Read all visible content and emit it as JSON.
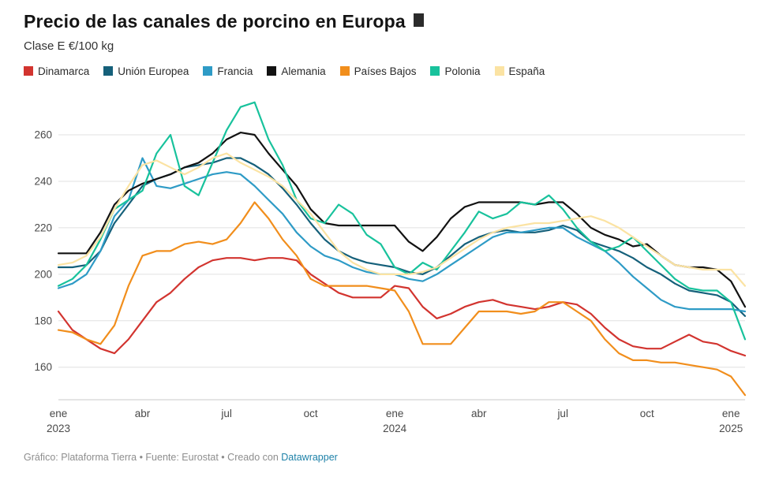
{
  "header": {
    "title": "Precio de las canales de porcino en Europa",
    "title_badge": "",
    "subtitle": "Clase E €/100 kg"
  },
  "footer": {
    "text_before": "Gráfico: Plataforma Tierra • Fuente: Eurostat • Creado con ",
    "link_label": "Datawrapper"
  },
  "colors": {
    "grid": "#e0e0e0",
    "axis": "#c8c8c8",
    "tick_text": "#494949",
    "link": "#1d81a8"
  },
  "chart_data": {
    "type": "line",
    "title": "Precio de las canales de porcino en Europa",
    "subtitle": "Clase E €/100 kg",
    "xlabel": "",
    "ylabel": "Clase E €/100 kg",
    "grid": "horizontal",
    "legend_position": "top",
    "xlim": [
      0,
      24.5
    ],
    "ylim": [
      146,
      278
    ],
    "y_ticks": [
      160,
      180,
      200,
      220,
      240,
      260
    ],
    "x_ticks": [
      {
        "pos": 0,
        "label": "ene",
        "year": "2023"
      },
      {
        "pos": 3,
        "label": "abr"
      },
      {
        "pos": 6,
        "label": "jul"
      },
      {
        "pos": 9,
        "label": "oct"
      },
      {
        "pos": 12,
        "label": "ene",
        "year": "2024"
      },
      {
        "pos": 15,
        "label": "abr"
      },
      {
        "pos": 18,
        "label": "jul"
      },
      {
        "pos": 21,
        "label": "oct"
      },
      {
        "pos": 24,
        "label": "ene",
        "year": "2025"
      }
    ],
    "x_unit": "months since January 2023 (0 = ene 2023)",
    "x": [
      0,
      0.5,
      1,
      1.5,
      2,
      2.5,
      3,
      3.5,
      4,
      4.5,
      5,
      5.5,
      6,
      6.5,
      7,
      7.5,
      8,
      8.5,
      9,
      9.5,
      10,
      10.5,
      11,
      11.5,
      12,
      12.5,
      13,
      13.5,
      14,
      14.5,
      15,
      15.5,
      16,
      16.5,
      17,
      17.5,
      18,
      18.5,
      19,
      19.5,
      20,
      20.5,
      21,
      21.5,
      22,
      22.5,
      23,
      23.5,
      24,
      24.5
    ],
    "series": [
      {
        "name": "Dinamarca",
        "color": "#d2342f",
        "values": [
          184,
          176,
          172,
          168,
          166,
          172,
          180,
          188,
          192,
          198,
          203,
          206,
          207,
          207,
          206,
          207,
          207,
          206,
          200,
          196,
          192,
          190,
          190,
          190,
          195,
          194,
          186,
          181,
          183,
          186,
          188,
          189,
          187,
          186,
          185,
          186,
          188,
          187,
          183,
          177,
          172,
          169,
          168,
          168,
          171,
          174,
          171,
          170,
          167,
          165
        ]
      },
      {
        "name": "Unión Europea",
        "color": "#15607a",
        "values": [
          203,
          203,
          204,
          210,
          222,
          230,
          238,
          241,
          243,
          246,
          247,
          248,
          250,
          250,
          247,
          243,
          237,
          230,
          222,
          215,
          210,
          207,
          205,
          204,
          203,
          201,
          200,
          203,
          208,
          213,
          216,
          218,
          219,
          218,
          218,
          219,
          221,
          219,
          214,
          212,
          210,
          207,
          203,
          200,
          196,
          193,
          192,
          191,
          188,
          182
        ]
      },
      {
        "name": "Francia",
        "color": "#2e9bc6",
        "values": [
          194,
          196,
          200,
          210,
          225,
          232,
          250,
          238,
          237,
          239,
          241,
          243,
          244,
          243,
          238,
          232,
          226,
          218,
          212,
          208,
          206,
          203,
          201,
          200,
          200,
          198,
          197,
          200,
          204,
          208,
          212,
          216,
          218,
          218,
          219,
          220,
          220,
          216,
          213,
          210,
          205,
          199,
          194,
          189,
          186,
          185,
          185,
          185,
          185,
          184
        ]
      },
      {
        "name": "Alemania",
        "color": "#121212",
        "values": [
          209,
          209,
          209,
          218,
          230,
          236,
          239,
          241,
          243,
          246,
          248,
          252,
          258,
          261,
          260,
          252,
          245,
          238,
          228,
          222,
          221,
          221,
          221,
          221,
          221,
          214,
          210,
          216,
          224,
          229,
          231,
          231,
          231,
          231,
          230,
          231,
          231,
          226,
          220,
          217,
          215,
          212,
          213,
          208,
          204,
          203,
          203,
          202,
          197,
          186
        ]
      },
      {
        "name": "Países Bajos",
        "color": "#f18e1c",
        "values": [
          176,
          175,
          172,
          170,
          178,
          195,
          208,
          210,
          210,
          213,
          214,
          213,
          215,
          222,
          231,
          224,
          215,
          208,
          198,
          195,
          195,
          195,
          195,
          194,
          193,
          184,
          170,
          170,
          170,
          177,
          184,
          184,
          184,
          183,
          184,
          188,
          188,
          184,
          180,
          172,
          166,
          163,
          163,
          162,
          162,
          161,
          160,
          159,
          156,
          148
        ]
      },
      {
        "name": "Polonia",
        "color": "#18c29c",
        "values": [
          195,
          198,
          204,
          215,
          228,
          232,
          236,
          252,
          260,
          238,
          234,
          248,
          262,
          272,
          274,
          258,
          247,
          232,
          224,
          222,
          230,
          226,
          217,
          213,
          203,
          200,
          205,
          202,
          210,
          218,
          227,
          224,
          226,
          231,
          230,
          234,
          228,
          220,
          214,
          210,
          212,
          216,
          210,
          204,
          198,
          194,
          193,
          193,
          188,
          172
        ]
      },
      {
        "name": "España",
        "color": "#fbe3a3",
        "values": [
          204,
          205,
          208,
          216,
          228,
          238,
          247,
          249,
          246,
          243,
          246,
          250,
          252,
          248,
          245,
          242,
          238,
          232,
          226,
          218,
          210,
          205,
          202,
          200,
          200,
          200,
          201,
          203,
          207,
          211,
          215,
          218,
          220,
          221,
          222,
          222,
          223,
          224,
          225,
          223,
          220,
          216,
          212,
          208,
          204,
          203,
          202,
          202,
          202,
          195
        ]
      }
    ]
  }
}
